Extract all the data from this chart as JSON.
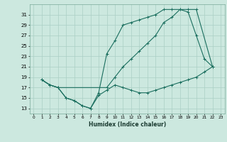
{
  "xlabel": "Humidex (Indice chaleur)",
  "xlim": [
    -0.5,
    23.5
  ],
  "ylim": [
    12,
    33
  ],
  "xticks": [
    0,
    1,
    2,
    3,
    4,
    5,
    6,
    7,
    8,
    9,
    10,
    11,
    12,
    13,
    14,
    15,
    16,
    17,
    18,
    19,
    20,
    21,
    22,
    23
  ],
  "yticks": [
    13,
    15,
    17,
    19,
    21,
    23,
    25,
    27,
    29,
    31
  ],
  "bg_color": "#cce8df",
  "grid_color": "#aacfc5",
  "line_color": "#1a6e5e",
  "line1_x": [
    1,
    2,
    3,
    4,
    5,
    6,
    7,
    8,
    9,
    10,
    11,
    12,
    13,
    14,
    15,
    16,
    17,
    18,
    19,
    20,
    21,
    22
  ],
  "line1_y": [
    18.5,
    17.5,
    17.0,
    15.0,
    14.5,
    13.5,
    13.0,
    15.5,
    16.5,
    17.5,
    17.0,
    16.5,
    16.0,
    16.0,
    16.5,
    17.0,
    17.5,
    18.0,
    18.5,
    19.0,
    20.0,
    21.0
  ],
  "line2_x": [
    1,
    2,
    3,
    4,
    5,
    6,
    7,
    8,
    9,
    10,
    11,
    12,
    13,
    14,
    15,
    16,
    17,
    18,
    19,
    20,
    21,
    22
  ],
  "line2_y": [
    18.5,
    17.5,
    17.0,
    15.0,
    14.5,
    13.5,
    13.0,
    16.0,
    23.5,
    26.0,
    29.0,
    29.5,
    30.0,
    30.5,
    31.0,
    32.0,
    32.0,
    32.0,
    31.5,
    27.0,
    22.5,
    21.0
  ],
  "line3_x": [
    1,
    2,
    3,
    9,
    10,
    11,
    12,
    13,
    14,
    15,
    16,
    17,
    18,
    19,
    20,
    22
  ],
  "line3_y": [
    18.5,
    17.5,
    17.0,
    17.0,
    19.0,
    21.0,
    22.5,
    24.0,
    25.5,
    27.0,
    29.5,
    30.5,
    32.0,
    32.0,
    32.0,
    21.0
  ]
}
